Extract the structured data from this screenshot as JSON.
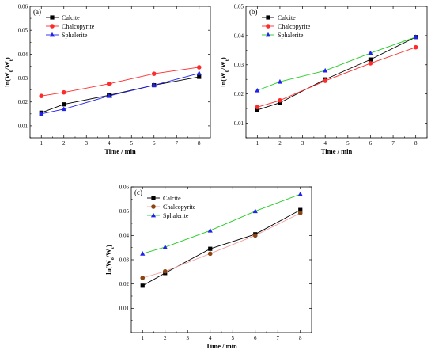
{
  "figure": {
    "panels": [
      {
        "id": "a",
        "label": "(a)"
      },
      {
        "id": "b",
        "label": "(b)"
      },
      {
        "id": "c",
        "label": "(c)"
      }
    ]
  },
  "chart_data": [
    {
      "type": "line",
      "panel_label": "(a)",
      "xlabel": "Time / min",
      "ylabel_prefix": "ln(W",
      "ylabel_sub1": "0",
      "ylabel_mid": "/W",
      "ylabel_sub2": "t",
      "ylabel_suffix": ")",
      "xlim": [
        0.5,
        8.5
      ],
      "ylim": [
        0.005,
        0.06
      ],
      "xticks": [
        "1",
        "2",
        "3",
        "4",
        "5",
        "6",
        "7",
        "8"
      ],
      "yticks": [
        "0.01",
        "0.02",
        "0.03",
        "0.04",
        "0.05",
        "0.06"
      ],
      "ytick_values": [
        0.01,
        0.02,
        0.03,
        0.04,
        0.05,
        0.06
      ],
      "grid": false,
      "legend_position": "top-left",
      "x": [
        1,
        2,
        4,
        6,
        8
      ],
      "series": [
        {
          "name": "Calcite",
          "color": "#000000",
          "marker": "square",
          "values": [
            0.0155,
            0.019,
            0.0228,
            0.027,
            0.0305
          ]
        },
        {
          "name": "Chalcopyrite",
          "color": "#ff2b2b",
          "marker": "circle",
          "values": [
            0.0225,
            0.024,
            0.0276,
            0.0318,
            0.0345
          ]
        },
        {
          "name": "Sphalerite",
          "color": "#2222ee",
          "marker": "triangle",
          "values": [
            0.015,
            0.017,
            0.0225,
            0.027,
            0.032
          ]
        }
      ]
    },
    {
      "type": "line",
      "panel_label": "(b)",
      "xlabel": "Time / min",
      "ylabel_prefix": "ln(W",
      "ylabel_sub1": "0",
      "ylabel_mid": "/W",
      "ylabel_sub2": "t",
      "ylabel_suffix": ")",
      "xlim": [
        0.5,
        8.5
      ],
      "ylim": [
        0.005,
        0.05
      ],
      "xticks": [
        "1",
        "2",
        "3",
        "4",
        "5",
        "6",
        "7",
        "8"
      ],
      "yticks": [
        "0.01",
        "0.02",
        "0.03",
        "0.04",
        "0.05"
      ],
      "ytick_values": [
        0.01,
        0.02,
        0.03,
        0.04,
        0.05
      ],
      "grid": false,
      "legend_position": "top-left",
      "x": [
        1,
        2,
        4,
        6,
        8
      ],
      "series": [
        {
          "name": "Calcite",
          "color": "#000000",
          "marker": "square",
          "values": [
            0.0145,
            0.017,
            0.025,
            0.0318,
            0.0395
          ]
        },
        {
          "name": "Chalcopyrite",
          "color": "#ff2b2b",
          "marker": "circle",
          "values": [
            0.0155,
            0.0178,
            0.0245,
            0.0305,
            0.036
          ]
        },
        {
          "name": "Sphalerite",
          "color": "#22cc22",
          "markerColor": "#2222ee",
          "marker": "triangle",
          "values": [
            0.0212,
            0.0242,
            0.028,
            0.034,
            0.0395
          ]
        }
      ]
    },
    {
      "type": "line",
      "panel_label": "(c)",
      "xlabel": "Time / min",
      "ylabel_prefix": "ln(W",
      "ylabel_sub1": "0",
      "ylabel_mid": "/W",
      "ylabel_sub2": "t",
      "ylabel_suffix": ")",
      "xlim": [
        0.5,
        8.5
      ],
      "ylim": [
        0.0,
        0.06
      ],
      "xticks": [
        "1",
        "2",
        "3",
        "4",
        "5",
        "6",
        "7",
        "8"
      ],
      "yticks": [
        "0.01",
        "0.02",
        "0.03",
        "0.04",
        "0.05",
        "0.06"
      ],
      "ytick_values": [
        0.01,
        0.02,
        0.03,
        0.04,
        0.05,
        0.06
      ],
      "grid": false,
      "legend_position": "top-left",
      "x": [
        1,
        2,
        4,
        6,
        8
      ],
      "series": [
        {
          "name": "Calcite",
          "color": "#000000",
          "marker": "square",
          "values": [
            0.0193,
            0.0245,
            0.0345,
            0.0405,
            0.0505
          ]
        },
        {
          "name": "Chalcopyrite",
          "color": "#f4a0a0",
          "markerColor": "#8b4513",
          "marker": "circle",
          "values": [
            0.0225,
            0.0252,
            0.0325,
            0.04,
            0.0492
          ]
        },
        {
          "name": "Sphalerite",
          "color": "#22cc22",
          "markerColor": "#2222ee",
          "marker": "triangle",
          "values": [
            0.0325,
            0.0352,
            0.042,
            0.05,
            0.057
          ]
        }
      ]
    }
  ]
}
